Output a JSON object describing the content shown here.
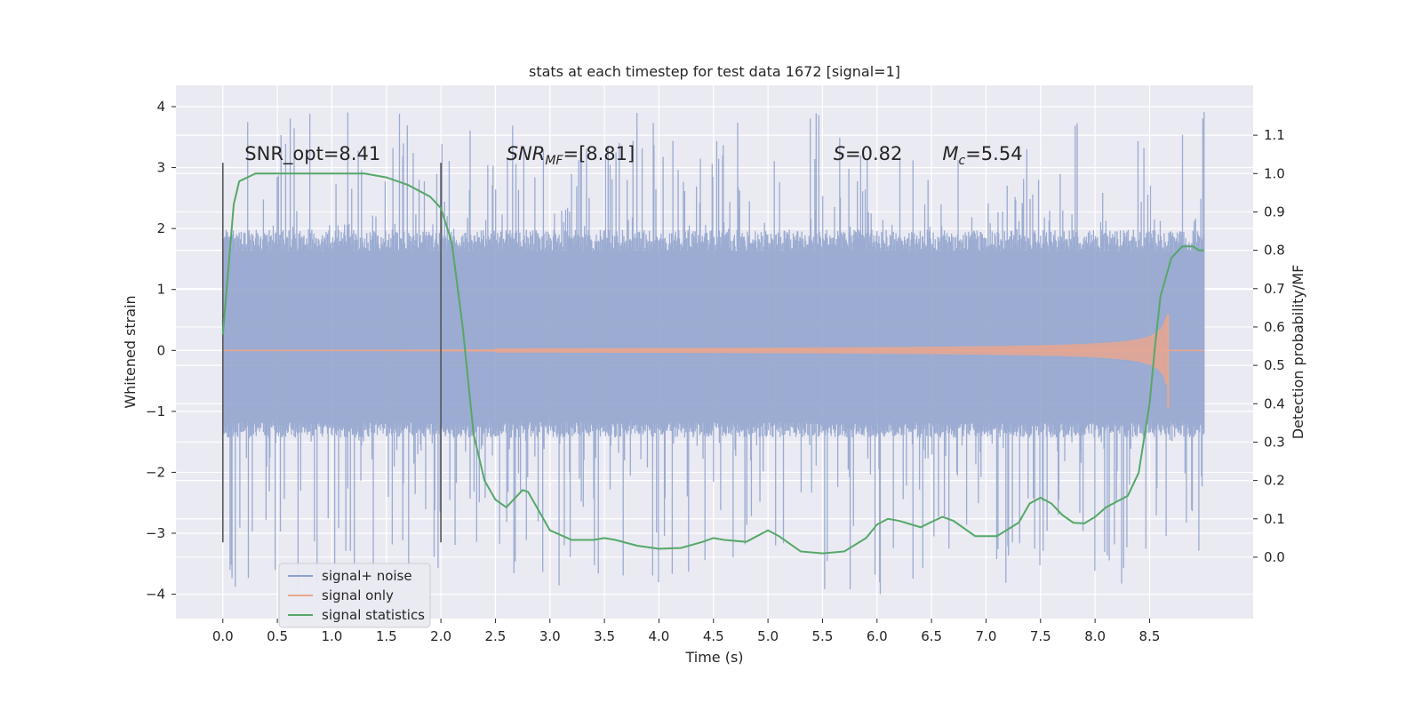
{
  "chart_data": {
    "type": "line",
    "title": "stats at each timestep for test data 1672 [signal=1]",
    "xlabel": "Time (s)",
    "ylabel": "Whitened strain",
    "y2label": "Detection probability/MF",
    "xlim": [
      -0.43,
      9.45
    ],
    "ylim": [
      -4.4,
      4.35
    ],
    "y2lim": [
      -0.16,
      1.23
    ],
    "grid": true,
    "legend_position": "bottom-left",
    "x_ticks": [
      "0.0",
      "0.5",
      "1.0",
      "1.5",
      "2.0",
      "2.5",
      "3.0",
      "3.5",
      "4.0",
      "4.5",
      "5.0",
      "5.5",
      "6.0",
      "6.5",
      "7.0",
      "7.5",
      "8.0",
      "8.5"
    ],
    "y_ticks": [
      "4",
      "3",
      "2",
      "1",
      "0",
      "−1",
      "−2",
      "−3",
      "−4"
    ],
    "y2_ticks": [
      "1.1",
      "1.0",
      "0.9",
      "0.8",
      "0.7",
      "0.6",
      "0.5",
      "0.4",
      "0.3",
      "0.2",
      "0.1",
      "0.0"
    ],
    "annotations": {
      "snr_opt": "SNR_opt=8.41",
      "snr_mf_main": "SNR",
      "snr_mf_sub": "MF",
      "snr_mf_value": "=[8.81]",
      "s_symbol": "S",
      "s_value": "=0.82",
      "mc_symbol": "M",
      "mc_sub": "c",
      "mc_value": "=5.54"
    },
    "window_markers": [
      0.0,
      2.0
    ],
    "series": [
      {
        "name": "signal+ noise",
        "color": "#8da0cb",
        "axis": "left",
        "t_start": 0.0,
        "t_end": 9.0,
        "envelope_typical": [
          -1.3,
          1.8
        ],
        "observed_extremes": {
          "max": 3.95,
          "min": -4.0
        }
      },
      {
        "name": "signal only",
        "color": "#e8a690",
        "axis": "left",
        "chirp_start": 2.5,
        "merger_time": 8.67,
        "peak_amplitude": 0.6,
        "min_value": -0.95
      },
      {
        "name": "signal statistics",
        "color": "#55a868",
        "axis": "right",
        "x": [
          0.0,
          0.05,
          0.1,
          0.15,
          0.3,
          0.6,
          1.0,
          1.3,
          1.5,
          1.7,
          1.9,
          2.0,
          2.1,
          2.2,
          2.3,
          2.4,
          2.5,
          2.6,
          2.7,
          2.75,
          2.8,
          2.9,
          3.0,
          3.2,
          3.4,
          3.5,
          3.6,
          3.8,
          4.0,
          4.2,
          4.4,
          4.5,
          4.6,
          4.8,
          4.9,
          5.0,
          5.1,
          5.3,
          5.5,
          5.7,
          5.9,
          6.0,
          6.1,
          6.2,
          6.4,
          6.5,
          6.6,
          6.7,
          6.9,
          7.1,
          7.3,
          7.4,
          7.5,
          7.6,
          7.7,
          7.8,
          7.9,
          8.0,
          8.1,
          8.2,
          8.3,
          8.4,
          8.5,
          8.55,
          8.6,
          8.7,
          8.8,
          8.9,
          8.95,
          9.0
        ],
        "values": [
          0.58,
          0.75,
          0.92,
          0.98,
          1.0,
          1.0,
          1.0,
          1.0,
          0.99,
          0.97,
          0.94,
          0.91,
          0.82,
          0.6,
          0.32,
          0.2,
          0.15,
          0.13,
          0.16,
          0.175,
          0.17,
          0.12,
          0.07,
          0.045,
          0.045,
          0.05,
          0.045,
          0.03,
          0.022,
          0.024,
          0.04,
          0.05,
          0.045,
          0.04,
          0.055,
          0.07,
          0.055,
          0.015,
          0.01,
          0.015,
          0.05,
          0.085,
          0.1,
          0.095,
          0.078,
          0.092,
          0.105,
          0.095,
          0.055,
          0.055,
          0.09,
          0.14,
          0.155,
          0.14,
          0.11,
          0.09,
          0.088,
          0.105,
          0.13,
          0.145,
          0.16,
          0.22,
          0.4,
          0.55,
          0.68,
          0.78,
          0.81,
          0.81,
          0.8,
          0.8
        ]
      }
    ]
  }
}
